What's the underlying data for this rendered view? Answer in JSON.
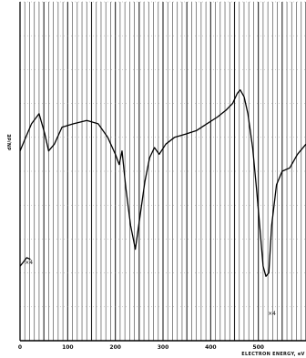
{
  "chart_data": {
    "type": "line",
    "title": "",
    "xlabel": "ELECTRON ENERGY, eV",
    "ylabel": "dN/dE",
    "xlim": [
      0,
      600
    ],
    "ylim": [
      0,
      100
    ],
    "x_ticks": [
      "0",
      "100",
      "200",
      "300",
      "400",
      "500"
    ],
    "x_tick_values": [
      0,
      100,
      200,
      300,
      400,
      500
    ],
    "grid": "vertical",
    "annotations": [
      {
        "text": "×4",
        "x": 10,
        "y": 22
      },
      {
        "text": "×4",
        "x": 520,
        "y": 7
      }
    ],
    "series": [
      {
        "values": [
          {
            "x": 0,
            "y": 56
          },
          {
            "x": 12,
            "y": 60
          },
          {
            "x": 24,
            "y": 64
          },
          {
            "x": 40,
            "y": 67
          },
          {
            "x": 52,
            "y": 61
          },
          {
            "x": 60,
            "y": 56
          },
          {
            "x": 72,
            "y": 58
          },
          {
            "x": 88,
            "y": 63
          },
          {
            "x": 112,
            "y": 64
          },
          {
            "x": 140,
            "y": 65
          },
          {
            "x": 164,
            "y": 64
          },
          {
            "x": 184,
            "y": 60
          },
          {
            "x": 200,
            "y": 55
          },
          {
            "x": 208,
            "y": 52
          },
          {
            "x": 214,
            "y": 56
          },
          {
            "x": 222,
            "y": 45
          },
          {
            "x": 232,
            "y": 34
          },
          {
            "x": 242,
            "y": 27
          },
          {
            "x": 252,
            "y": 37
          },
          {
            "x": 262,
            "y": 47
          },
          {
            "x": 272,
            "y": 54
          },
          {
            "x": 282,
            "y": 57
          },
          {
            "x": 292,
            "y": 55
          },
          {
            "x": 306,
            "y": 58
          },
          {
            "x": 324,
            "y": 60
          },
          {
            "x": 348,
            "y": 61
          },
          {
            "x": 370,
            "y": 62
          },
          {
            "x": 392,
            "y": 64
          },
          {
            "x": 414,
            "y": 66
          },
          {
            "x": 432,
            "y": 68
          },
          {
            "x": 446,
            "y": 70
          },
          {
            "x": 456,
            "y": 73
          },
          {
            "x": 462,
            "y": 74
          },
          {
            "x": 470,
            "y": 72
          },
          {
            "x": 478,
            "y": 67
          },
          {
            "x": 488,
            "y": 57
          },
          {
            "x": 496,
            "y": 45
          },
          {
            "x": 504,
            "y": 32
          },
          {
            "x": 510,
            "y": 22
          },
          {
            "x": 516,
            "y": 19
          },
          {
            "x": 522,
            "y": 20
          },
          {
            "x": 528,
            "y": 34
          },
          {
            "x": 538,
            "y": 46
          },
          {
            "x": 550,
            "y": 50
          },
          {
            "x": 566,
            "y": 51
          },
          {
            "x": 582,
            "y": 55
          },
          {
            "x": 600,
            "y": 58
          }
        ]
      },
      {
        "values": [
          {
            "x": 0,
            "y": 22
          },
          {
            "x": 6,
            "y": 23
          },
          {
            "x": 14,
            "y": 24.5
          },
          {
            "x": 22,
            "y": 24
          }
        ]
      }
    ]
  }
}
